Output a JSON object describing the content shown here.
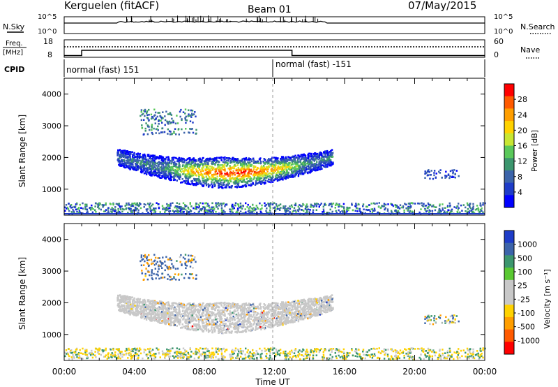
{
  "header": {
    "station": "Kerguelen (fitACF)",
    "beam": "Beam 01",
    "date": "07/May/2015"
  },
  "status_panels": {
    "nsky_label": "N.Sky",
    "nsearch_label": "N.Search",
    "freq_label_top": "Freq.",
    "freq_label_unit": "[MHz]",
    "nave_label": "Nave",
    "cpid_label": "CPID",
    "left_ticks_top": [
      "10^5",
      "10^0"
    ],
    "right_ticks_top": [
      "10^5",
      "10^0"
    ],
    "freq_ticks": [
      "18",
      "8"
    ],
    "nave_ticks": [
      "60",
      "0"
    ],
    "cpid_segments": [
      "normal (fast) 151",
      "normal (fast) -151"
    ]
  },
  "power_panel": {
    "ylabel": "Slant Range [km]",
    "yticks": [
      "4000",
      "3000",
      "2000",
      "1000"
    ],
    "colorbar_title": "Power [dB]",
    "colorbar_ticks": [
      "28",
      "24",
      "20",
      "16",
      "12",
      "8",
      "4"
    ],
    "colors": [
      "#ff0000",
      "#ff5a00",
      "#ff9e00",
      "#ffd200",
      "#c8e632",
      "#5ac85a",
      "#3c966e",
      "#3c64aa",
      "#1e3cc8",
      "#0000ff"
    ]
  },
  "velocity_panel": {
    "ylabel": "Slant Range [km]",
    "yticks": [
      "4000",
      "3000",
      "2000",
      "1000"
    ],
    "colorbar_title": "Velocity [m s⁻¹]",
    "colorbar_ticks": [
      "1000",
      "500",
      "100",
      "25",
      "-25",
      "-100",
      "-500",
      "-1000"
    ],
    "colors": [
      "#1e3cc8",
      "#3c64aa",
      "#3c966e",
      "#5ac832",
      "#c8c8c8",
      "#c8c8c8",
      "#ffd200",
      "#ff9e00",
      "#ff5a00",
      "#ff0000"
    ]
  },
  "xaxis": {
    "label": "Time UT",
    "ticks": [
      "00:00",
      "04:00",
      "08:00",
      "12:00",
      "16:00",
      "20:00",
      "00:00"
    ]
  },
  "chart_data": {
    "type": "heatmap",
    "title": "Kerguelen (fitACF)  Beam 01  07/May/2015",
    "xlabel": "Time UT",
    "ylabel": "Slant Range [km]",
    "x_range_hours": [
      0,
      24
    ],
    "y_range_km": [
      180,
      4500
    ],
    "power_colorbar_db": [
      0,
      32
    ],
    "velocity_colorbar_ms": [
      -1000,
      1000
    ],
    "freq_mhz_steps": [
      {
        "start_hour": 0,
        "end_hour": 1,
        "freq": 9
      },
      {
        "start_hour": 1,
        "end_hour": 13,
        "freq": 12
      },
      {
        "start_hour": 13,
        "end_hour": 24,
        "freq": 9
      }
    ],
    "cpid_steps": [
      {
        "start_hour": 0,
        "label": "normal (fast) 151"
      },
      {
        "start_hour": 12,
        "label": "normal (fast) -151"
      }
    ],
    "scatter_regions": [
      {
        "name": "main-echo-band",
        "t_start_hour": 3.0,
        "t_end_hour": 15.3,
        "range_km": [
          900,
          2400
        ],
        "peak_power_db": 30,
        "velocity_ms": 0
      },
      {
        "name": "upper-patches",
        "t_start_hour": 4.3,
        "t_end_hour": 7.5,
        "range_km": [
          2700,
          3500
        ],
        "peak_power_db": 12,
        "velocity_ms": 300
      },
      {
        "name": "late-patch",
        "t_start_hour": 20.5,
        "t_end_hour": 22.5,
        "range_km": [
          1300,
          1600
        ],
        "peak_power_db": 6,
        "velocity_ms": -50
      },
      {
        "name": "near-range-ground-scatter",
        "t_start_hour": 0,
        "t_end_hour": 24,
        "range_km": [
          200,
          500
        ],
        "peak_power_db": 10,
        "velocity_ms": 0
      }
    ]
  }
}
